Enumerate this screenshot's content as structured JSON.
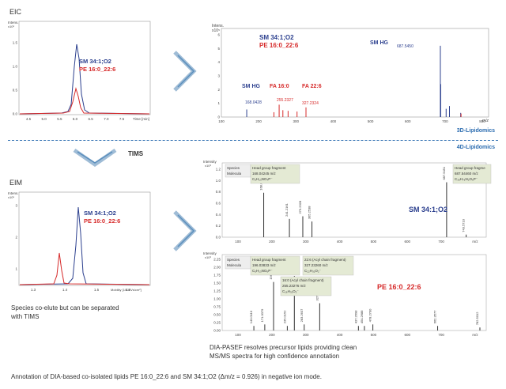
{
  "top": {
    "section_label": "EIC",
    "eic_axis": {
      "y_title": "Intens.\nx10⁶",
      "y_ticks": [
        "1.5",
        "1.0",
        "0.5",
        "0.0"
      ],
      "x_ticks": [
        "4.5",
        "5.0",
        "5.5",
        "6.0",
        "6.5",
        "7.0",
        "7.5"
      ],
      "x_title": "Time [min]"
    },
    "legend_sm": "SM 34:1;O2",
    "legend_pe": "PE 16:0_22:6",
    "ms": {
      "y_title": "Intens.\nx10⁵",
      "y_ticks": [
        "6",
        "5",
        "4",
        "3",
        "2",
        "1",
        "0"
      ],
      "x_ticks": [
        "100",
        "200",
        "300",
        "400",
        "500",
        "600",
        "700",
        "800"
      ],
      "x_unit": "m/z",
      "legend_sm": "SM 34:1;O2",
      "legend_pe": "PE 16:0_22:6",
      "ann_sm_hg_right": "SM HG",
      "ann_mz_right": "687.5450",
      "ann_sm_hg_left": "SM HG",
      "ann_fa160": "FA 16:0",
      "ann_fa226": "FA 22:6",
      "ann_mz_168": "168.0428",
      "ann_mz_255": "255.2327",
      "ann_mz_327": "327.2324"
    }
  },
  "divider": {
    "label_3d": "3D-Lipidomics",
    "label_4d": "4D-Lipidomics"
  },
  "tims_label": "TIMS",
  "bottom": {
    "section_label": "EIM",
    "eim_axis": {
      "y_title": "Intens.\nx10⁵",
      "y_ticks": [
        "3",
        "2",
        "1"
      ],
      "x_ticks": [
        "1.3",
        "1.4",
        "1.5",
        "1.6"
      ],
      "x_title": "Mobility [1/K0 Vs/cm²]"
    },
    "legend_sm": "SM 34:1;O2",
    "legend_pe": "PE 16:0_22:6",
    "caption": "Species co-elute but can be separated\nwith TIMS",
    "panel_sm": {
      "y_title": "Intensity\nx10³",
      "y_ticks": [
        "1.2",
        "1.0",
        "0.8",
        "0.6",
        "0.4",
        "0.2",
        "0.0"
      ],
      "x_ticks": [
        "100",
        "200",
        "300",
        "400",
        "500",
        "600",
        "700",
        "m/z"
      ],
      "label": "SM 34:1;O2",
      "box_left_1": "Species",
      "box_left_2": "Molecula",
      "box_hg": "Head group fragment",
      "box_hg_mz": "168.04245 m/z",
      "box_hg_formula": "C₅H₁₃NO₄P⁻",
      "box_right_1": "Head group fragme",
      "box_right_2": "687.54460 m/z",
      "box_right_3": "C₃₉H₇₆N₂O₆P⁻",
      "peak_labels": [
        "168.0424",
        "241.2161",
        "279.2328",
        "305.2538",
        "687.5451",
        "743.5710"
      ]
    },
    "panel_pe": {
      "y_title": "Intensity\nx10³",
      "y_ticks": [
        "2.25",
        "2.00",
        "1.75",
        "1.50",
        "1.25",
        "1.00",
        "0.75",
        "0.50",
        "0.25",
        "0.00"
      ],
      "x_ticks": [
        "100",
        "200",
        "300",
        "400",
        "500",
        "600",
        "700",
        "m/z"
      ],
      "label": "PE 16:0_22:6",
      "box_left_1": "Species",
      "box_left_2": "Molecula",
      "box_hg": "Head group fragment",
      "box_hg_mz": "196.03833 m/z",
      "box_hg_formula": "C₅H₁₃NO₆P⁻",
      "box_fa226_1": "22:6 (Acyl chain fragment)",
      "box_fa226_2": "327.23260 m/z",
      "box_fa226_3": "C₂₂H₃₁O₂⁻",
      "box_fa160_1": "16:0 (Acyl chain fragment)",
      "box_fa160_2": "255.23276 m/z",
      "box_fa160_3": "C₁₆H₃₁O₂⁻",
      "peak_labels": [
        "140.0110",
        "171.0079",
        "196.0339",
        "235.0152",
        "255.2328",
        "283.2637",
        "327.2322",
        "437.2698",
        "454.2688",
        "478.2700",
        "662.3577",
        "782.5012"
      ]
    },
    "note": "DIA-PASEF resolves precursor lipids providing clean\nMS/MS spectra for high confidence annotation"
  },
  "footer": "Annotation of DIA-based co-isolated lipids PE 16:0_22:6 and SM 34:1;O2 (Δm/z = 0.926) in negative ion mode.",
  "colors": {
    "sm": "#2b3f8e",
    "pe": "#d62a2a",
    "accent": "#2b6cb0",
    "arrow": "#5b8fbd"
  }
}
